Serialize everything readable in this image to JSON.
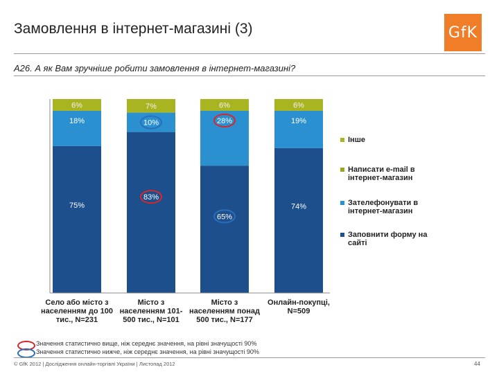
{
  "header": {
    "title": "Замовлення в інтернет-магазині (3)",
    "question": "A26. А як Вам зручніше робити замовлення в інтернет-магазині?",
    "logo_text": "GfK"
  },
  "chart_data": {
    "type": "bar",
    "stacked": true,
    "categories": [
      [
        "Село або місто з",
        "населенням до 100",
        "тис., N=231"
      ],
      [
        "Місто з",
        "населенням 101-",
        "500 тис., N=101"
      ],
      [
        "Місто з",
        "населенням понад",
        "500 тис., N=177"
      ],
      [
        "Онлайн-покупці,",
        "N=509"
      ]
    ],
    "series": [
      {
        "name": "Заповнити форму на сайті",
        "color": "#1d4f8c",
        "values": [
          75,
          83,
          65,
          74
        ],
        "labels": [
          "75%",
          "83%",
          "65%",
          "74%"
        ]
      },
      {
        "name": "Зателефонувати в інтернет-магазин",
        "color": "#2a90cf",
        "values": [
          18,
          10,
          28,
          19
        ],
        "labels": [
          "18%",
          "10%",
          "28%",
          "19%"
        ]
      },
      {
        "name": "Написати e-mail в інтернет-магазин",
        "color": "#9aa51e",
        "values": [
          0,
          0,
          0,
          0
        ],
        "labels": []
      },
      {
        "name": "Інше",
        "color": "#a8b520",
        "values": [
          6,
          7,
          6,
          6
        ],
        "labels": [
          "6%",
          "7%",
          "6%",
          "6%"
        ]
      }
    ],
    "legend": [
      {
        "label": "Інше",
        "color": "#a8b520"
      },
      {
        "label": "Написати e-mail в інтернет-магазин",
        "color": "#9aa51e"
      },
      {
        "label": "Зателефонувати в інтернет-магазин",
        "color": "#2a90cf"
      },
      {
        "label": "Заповнити форму на сайті",
        "color": "#1d4f8c"
      }
    ],
    "ylim": [
      0,
      100
    ],
    "highlights": [
      {
        "series": 0,
        "bar": 1,
        "type": "higher"
      },
      {
        "series": 0,
        "bar": 2,
        "type": "lower"
      },
      {
        "series": 1,
        "bar": 1,
        "type": "lower"
      },
      {
        "series": 1,
        "bar": 2,
        "type": "higher"
      }
    ]
  },
  "notes": {
    "higher": "Значення статистично вище, ніж середнє значення, на рівні значущості 90%",
    "lower": "Значення статистично нижче, ніж середнє значення, на рівні значущості 90%",
    "higher_color": "#d9262c",
    "lower_color": "#2a6fb8"
  },
  "footer": {
    "text": "© GfK 2012 | Дослідження онлайн-торгівлі України | Листопад 2012",
    "page": "44"
  }
}
